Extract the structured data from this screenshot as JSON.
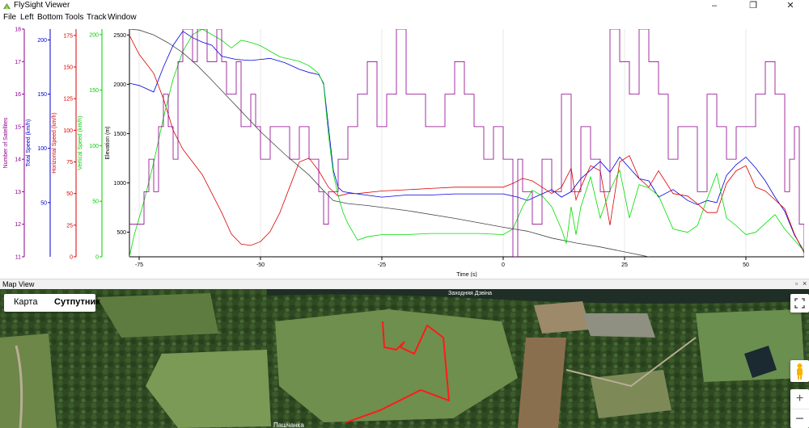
{
  "window": {
    "title": "FlySight Viewer"
  },
  "menu": [
    "File",
    "Left",
    "Bottom",
    "Tools",
    "Track",
    "Window"
  ],
  "window_controls": {
    "minimize": "–",
    "maximize": "❐",
    "close": "✕"
  },
  "chart_data": {
    "type": "line",
    "xlabel": "Time (s)",
    "xlim": [
      -77,
      62
    ],
    "xticks": [
      -75,
      -50,
      -25,
      0,
      25,
      50
    ],
    "grid": true,
    "axes": [
      {
        "name": "Number of Satellites",
        "color": "#8b008b",
        "ticks": [
          11,
          12,
          13,
          14,
          15,
          16,
          17,
          18
        ],
        "range": [
          11,
          18
        ]
      },
      {
        "name": "Total Speed (km/h)",
        "color": "#0000cc",
        "ticks": [
          50,
          100,
          150,
          200
        ],
        "range": [
          0,
          210
        ]
      },
      {
        "name": "Horizontal Speed (km/h)",
        "color": "#dd0000",
        "ticks": [
          0,
          25,
          50,
          75,
          100,
          125,
          150,
          175
        ],
        "range": [
          0,
          180
        ]
      },
      {
        "name": "Vertical Speed (km/h)",
        "color": "#00cc00",
        "ticks": [
          0,
          50,
          100,
          150,
          200
        ],
        "range": [
          0,
          205
        ]
      },
      {
        "name": "Elevation (m)",
        "color": "#000000",
        "ticks": [
          500,
          1000,
          1500,
          2000,
          2500
        ],
        "range": [
          250,
          2560
        ]
      }
    ],
    "series": [
      {
        "axis": 4,
        "color": "#444444",
        "x": [
          -77,
          -75,
          -72,
          -69,
          -66,
          -63,
          -60,
          -55,
          -50,
          -45,
          -40,
          -37,
          -35,
          -32,
          -28,
          -20,
          -10,
          0,
          5,
          10,
          15,
          20,
          25,
          30,
          35,
          40,
          45,
          50,
          55,
          60,
          62
        ],
        "y": [
          2560,
          2550,
          2500,
          2420,
          2320,
          2190,
          2040,
          1780,
          1520,
          1290,
          1080,
          920,
          820,
          790,
          770,
          720,
          640,
          550,
          510,
          440,
          390,
          350,
          300,
          250,
          210,
          170,
          130,
          80,
          20,
          0,
          -10
        ]
      },
      {
        "axis": 1,
        "color": "#0000dd",
        "x": [
          -77,
          -75,
          -72,
          -70,
          -68,
          -66,
          -64,
          -62,
          -60,
          -58,
          -55,
          -52,
          -50,
          -48,
          -45,
          -42,
          -40,
          -38,
          -37,
          -36,
          -35,
          -34,
          -33,
          -30,
          -25,
          -20,
          -15,
          -10,
          -5,
          0,
          3,
          5,
          8,
          10,
          12,
          14,
          16,
          18,
          20,
          22,
          24,
          26,
          28,
          30,
          32,
          35,
          38,
          40,
          42,
          44,
          46,
          48,
          50,
          52,
          54,
          56,
          58,
          60,
          62
        ],
        "y": [
          160,
          158,
          152,
          175,
          195,
          208,
          202,
          198,
          195,
          185,
          182,
          181,
          182,
          183,
          179,
          173,
          170,
          168,
          160,
          120,
          80,
          64,
          60,
          58,
          55,
          57,
          57,
          58,
          58,
          58,
          55,
          52,
          58,
          62,
          55,
          60,
          72,
          80,
          88,
          78,
          92,
          82,
          72,
          70,
          55,
          62,
          52,
          48,
          52,
          50,
          75,
          85,
          92,
          82,
          70,
          55,
          42,
          20,
          5
        ]
      },
      {
        "axis": 2,
        "color": "#dd0000",
        "x": [
          -77,
          -75,
          -72,
          -70,
          -68,
          -66,
          -64,
          -62,
          -60,
          -58,
          -56,
          -54,
          -52,
          -50,
          -48,
          -46,
          -44,
          -42,
          -40,
          -38,
          -36,
          -34,
          -32,
          -30,
          -25,
          -20,
          -15,
          -10,
          -5,
          0,
          2,
          4,
          6,
          8,
          10,
          12,
          14,
          15,
          16,
          18,
          20,
          22,
          24,
          26,
          28,
          30,
          32,
          35,
          38,
          40,
          42,
          44,
          46,
          48,
          50,
          52,
          54,
          56,
          58,
          60,
          62
        ],
        "y": [
          175,
          160,
          145,
          125,
          100,
          85,
          75,
          65,
          50,
          35,
          18,
          10,
          9,
          12,
          20,
          35,
          55,
          75,
          78,
          68,
          55,
          48,
          50,
          50,
          52,
          53,
          54,
          55,
          55,
          55,
          58,
          62,
          60,
          55,
          50,
          55,
          70,
          45,
          55,
          72,
          68,
          25,
          75,
          80,
          62,
          55,
          68,
          50,
          48,
          42,
          35,
          35,
          58,
          68,
          72,
          55,
          52,
          45,
          38,
          18,
          3
        ]
      },
      {
        "axis": 3,
        "color": "#00dd00",
        "x": [
          -77,
          -76,
          -74,
          -72,
          -70,
          -68,
          -66,
          -64,
          -62,
          -60,
          -58,
          -56,
          -54,
          -52,
          -50,
          -48,
          -46,
          -44,
          -42,
          -40,
          -38,
          -37,
          -36,
          -35,
          -34,
          -33,
          -32,
          -30,
          -28,
          -25,
          -20,
          -15,
          -10,
          -5,
          0,
          2,
          4,
          6,
          8,
          10,
          12,
          13,
          14,
          15,
          16,
          18,
          20,
          22,
          24,
          26,
          28,
          30,
          32,
          35,
          38,
          40,
          42,
          44,
          46,
          48,
          50,
          52,
          54,
          56,
          58,
          60,
          62
        ],
        "y": [
          0,
          20,
          50,
          85,
          125,
          160,
          185,
          200,
          205,
          200,
          195,
          188,
          195,
          193,
          190,
          185,
          180,
          178,
          176,
          172,
          165,
          155,
          110,
          75,
          55,
          40,
          30,
          15,
          18,
          20,
          20,
          21,
          21,
          21,
          20,
          25,
          45,
          60,
          55,
          45,
          25,
          12,
          45,
          20,
          45,
          72,
          35,
          60,
          78,
          35,
          65,
          62,
          55,
          25,
          22,
          28,
          52,
          75,
          35,
          28,
          20,
          22,
          30,
          38,
          25,
          15,
          5
        ]
      },
      {
        "axis": 0,
        "color": "#8b008b",
        "x": [
          -77,
          -75,
          -74,
          -73,
          -72,
          -71,
          -70,
          -69,
          -68,
          -67,
          -66,
          -65,
          -64,
          -63,
          -62,
          -61,
          -60,
          -59,
          -58,
          -57,
          -56,
          -55,
          -54,
          -53,
          -52,
          -51,
          -50,
          -48,
          -46,
          -44,
          -42,
          -40,
          -38,
          -37,
          -36,
          -34,
          -32,
          -30,
          -28,
          -26,
          -24,
          -22,
          -20,
          -18,
          -16,
          -14,
          -12,
          -10,
          -8,
          -6,
          -4,
          -2,
          0,
          2,
          3,
          4,
          6,
          8,
          10,
          12,
          14,
          16,
          18,
          20,
          22,
          24,
          26,
          28,
          30,
          32,
          34,
          36,
          38,
          40,
          42,
          44,
          46,
          48,
          50,
          52,
          54,
          56,
          58,
          59,
          60,
          61,
          62
        ],
        "y": [
          12,
          12,
          13,
          14,
          13,
          15,
          16,
          15,
          14,
          17,
          18,
          18,
          17,
          18,
          18,
          17,
          17,
          18,
          17,
          16,
          16,
          17,
          15,
          15,
          16,
          15,
          14,
          15,
          15,
          14,
          15,
          14,
          13,
          12,
          13,
          14,
          15,
          16,
          17,
          15,
          16,
          18,
          16,
          16,
          15,
          15,
          16,
          17,
          16,
          15,
          14,
          15,
          14,
          11,
          14,
          13,
          12,
          14,
          13,
          16,
          13,
          15,
          14,
          13,
          18,
          17,
          16,
          18,
          17,
          16,
          14,
          15,
          15,
          13,
          16,
          15,
          14,
          15,
          15,
          16,
          17,
          16,
          13,
          14,
          15,
          12,
          11
        ]
      }
    ]
  },
  "map_view": {
    "title": "Map View",
    "map_button": "Карта",
    "satellite_button": "Сутпутник",
    "places": [
      "Заходняя Дзвіна",
      "Пашчанка"
    ],
    "track_color": "#ff1a1a"
  }
}
